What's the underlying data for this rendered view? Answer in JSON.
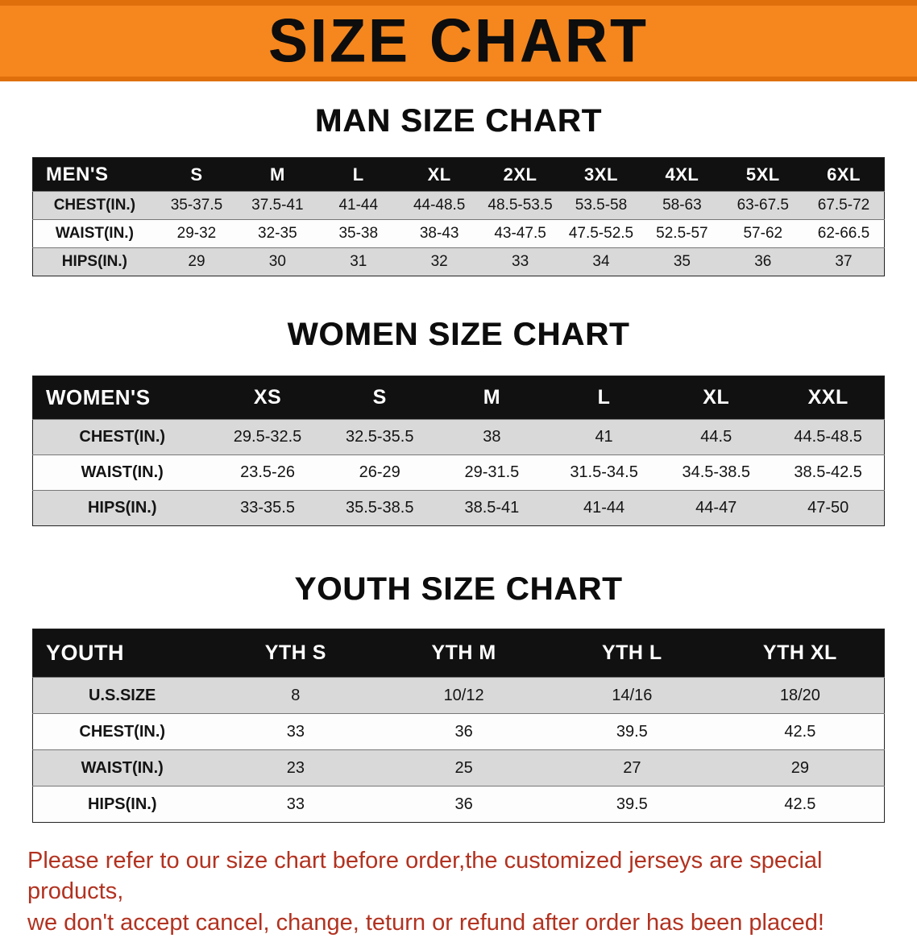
{
  "banner": {
    "title": "SIZE CHART"
  },
  "colors": {
    "banner_bg": "#f5871e",
    "banner_edge": "#df6f0b",
    "header_bg": "#111111",
    "row_stripe": "#d9d9d9",
    "footer_text": "#b23220"
  },
  "sections": [
    {
      "id": "men",
      "heading": "MAN SIZE CHART",
      "table": {
        "header": [
          "MEN'S",
          "S",
          "M",
          "L",
          "XL",
          "2XL",
          "3XL",
          "4XL",
          "5XL",
          "6XL"
        ],
        "rows": [
          [
            "CHEST(IN.)",
            "35-37.5",
            "37.5-41",
            "41-44",
            "44-48.5",
            "48.5-53.5",
            "53.5-58",
            "58-63",
            "63-67.5",
            "67.5-72"
          ],
          [
            "WAIST(IN.)",
            "29-32",
            "32-35",
            "35-38",
            "38-43",
            "43-47.5",
            "47.5-52.5",
            "52.5-57",
            "57-62",
            "62-66.5"
          ],
          [
            "HIPS(IN.)",
            "29",
            "30",
            "31",
            "32",
            "33",
            "34",
            "35",
            "36",
            "37"
          ]
        ]
      }
    },
    {
      "id": "women",
      "heading": "WOMEN SIZE CHART",
      "table": {
        "header": [
          "WOMEN'S",
          "XS",
          "S",
          "M",
          "L",
          "XL",
          "XXL"
        ],
        "rows": [
          [
            "CHEST(IN.)",
            "29.5-32.5",
            "32.5-35.5",
            "38",
            "41",
            "44.5",
            "44.5-48.5"
          ],
          [
            "WAIST(IN.)",
            "23.5-26",
            "26-29",
            "29-31.5",
            "31.5-34.5",
            "34.5-38.5",
            "38.5-42.5"
          ],
          [
            "HIPS(IN.)",
            "33-35.5",
            "35.5-38.5",
            "38.5-41",
            "41-44",
            "44-47",
            "47-50"
          ]
        ]
      }
    },
    {
      "id": "youth",
      "heading": "YOUTH SIZE CHART",
      "table": {
        "header": [
          "YOUTH",
          "YTH S",
          "YTH M",
          "YTH L",
          "YTH XL"
        ],
        "rows": [
          [
            "U.S.SIZE",
            "8",
            "10/12",
            "14/16",
            "18/20"
          ],
          [
            "CHEST(IN.)",
            "33",
            "36",
            "39.5",
            "42.5"
          ],
          [
            "WAIST(IN.)",
            "23",
            "25",
            "27",
            "29"
          ],
          [
            "HIPS(IN.)",
            "33",
            "36",
            "39.5",
            "42.5"
          ]
        ]
      }
    }
  ],
  "footer": {
    "line1": "Please refer to our size chart before order,the customized jerseys are special products,",
    "line2": "we don't accept cancel, change, teturn or refund after order has been placed!"
  }
}
